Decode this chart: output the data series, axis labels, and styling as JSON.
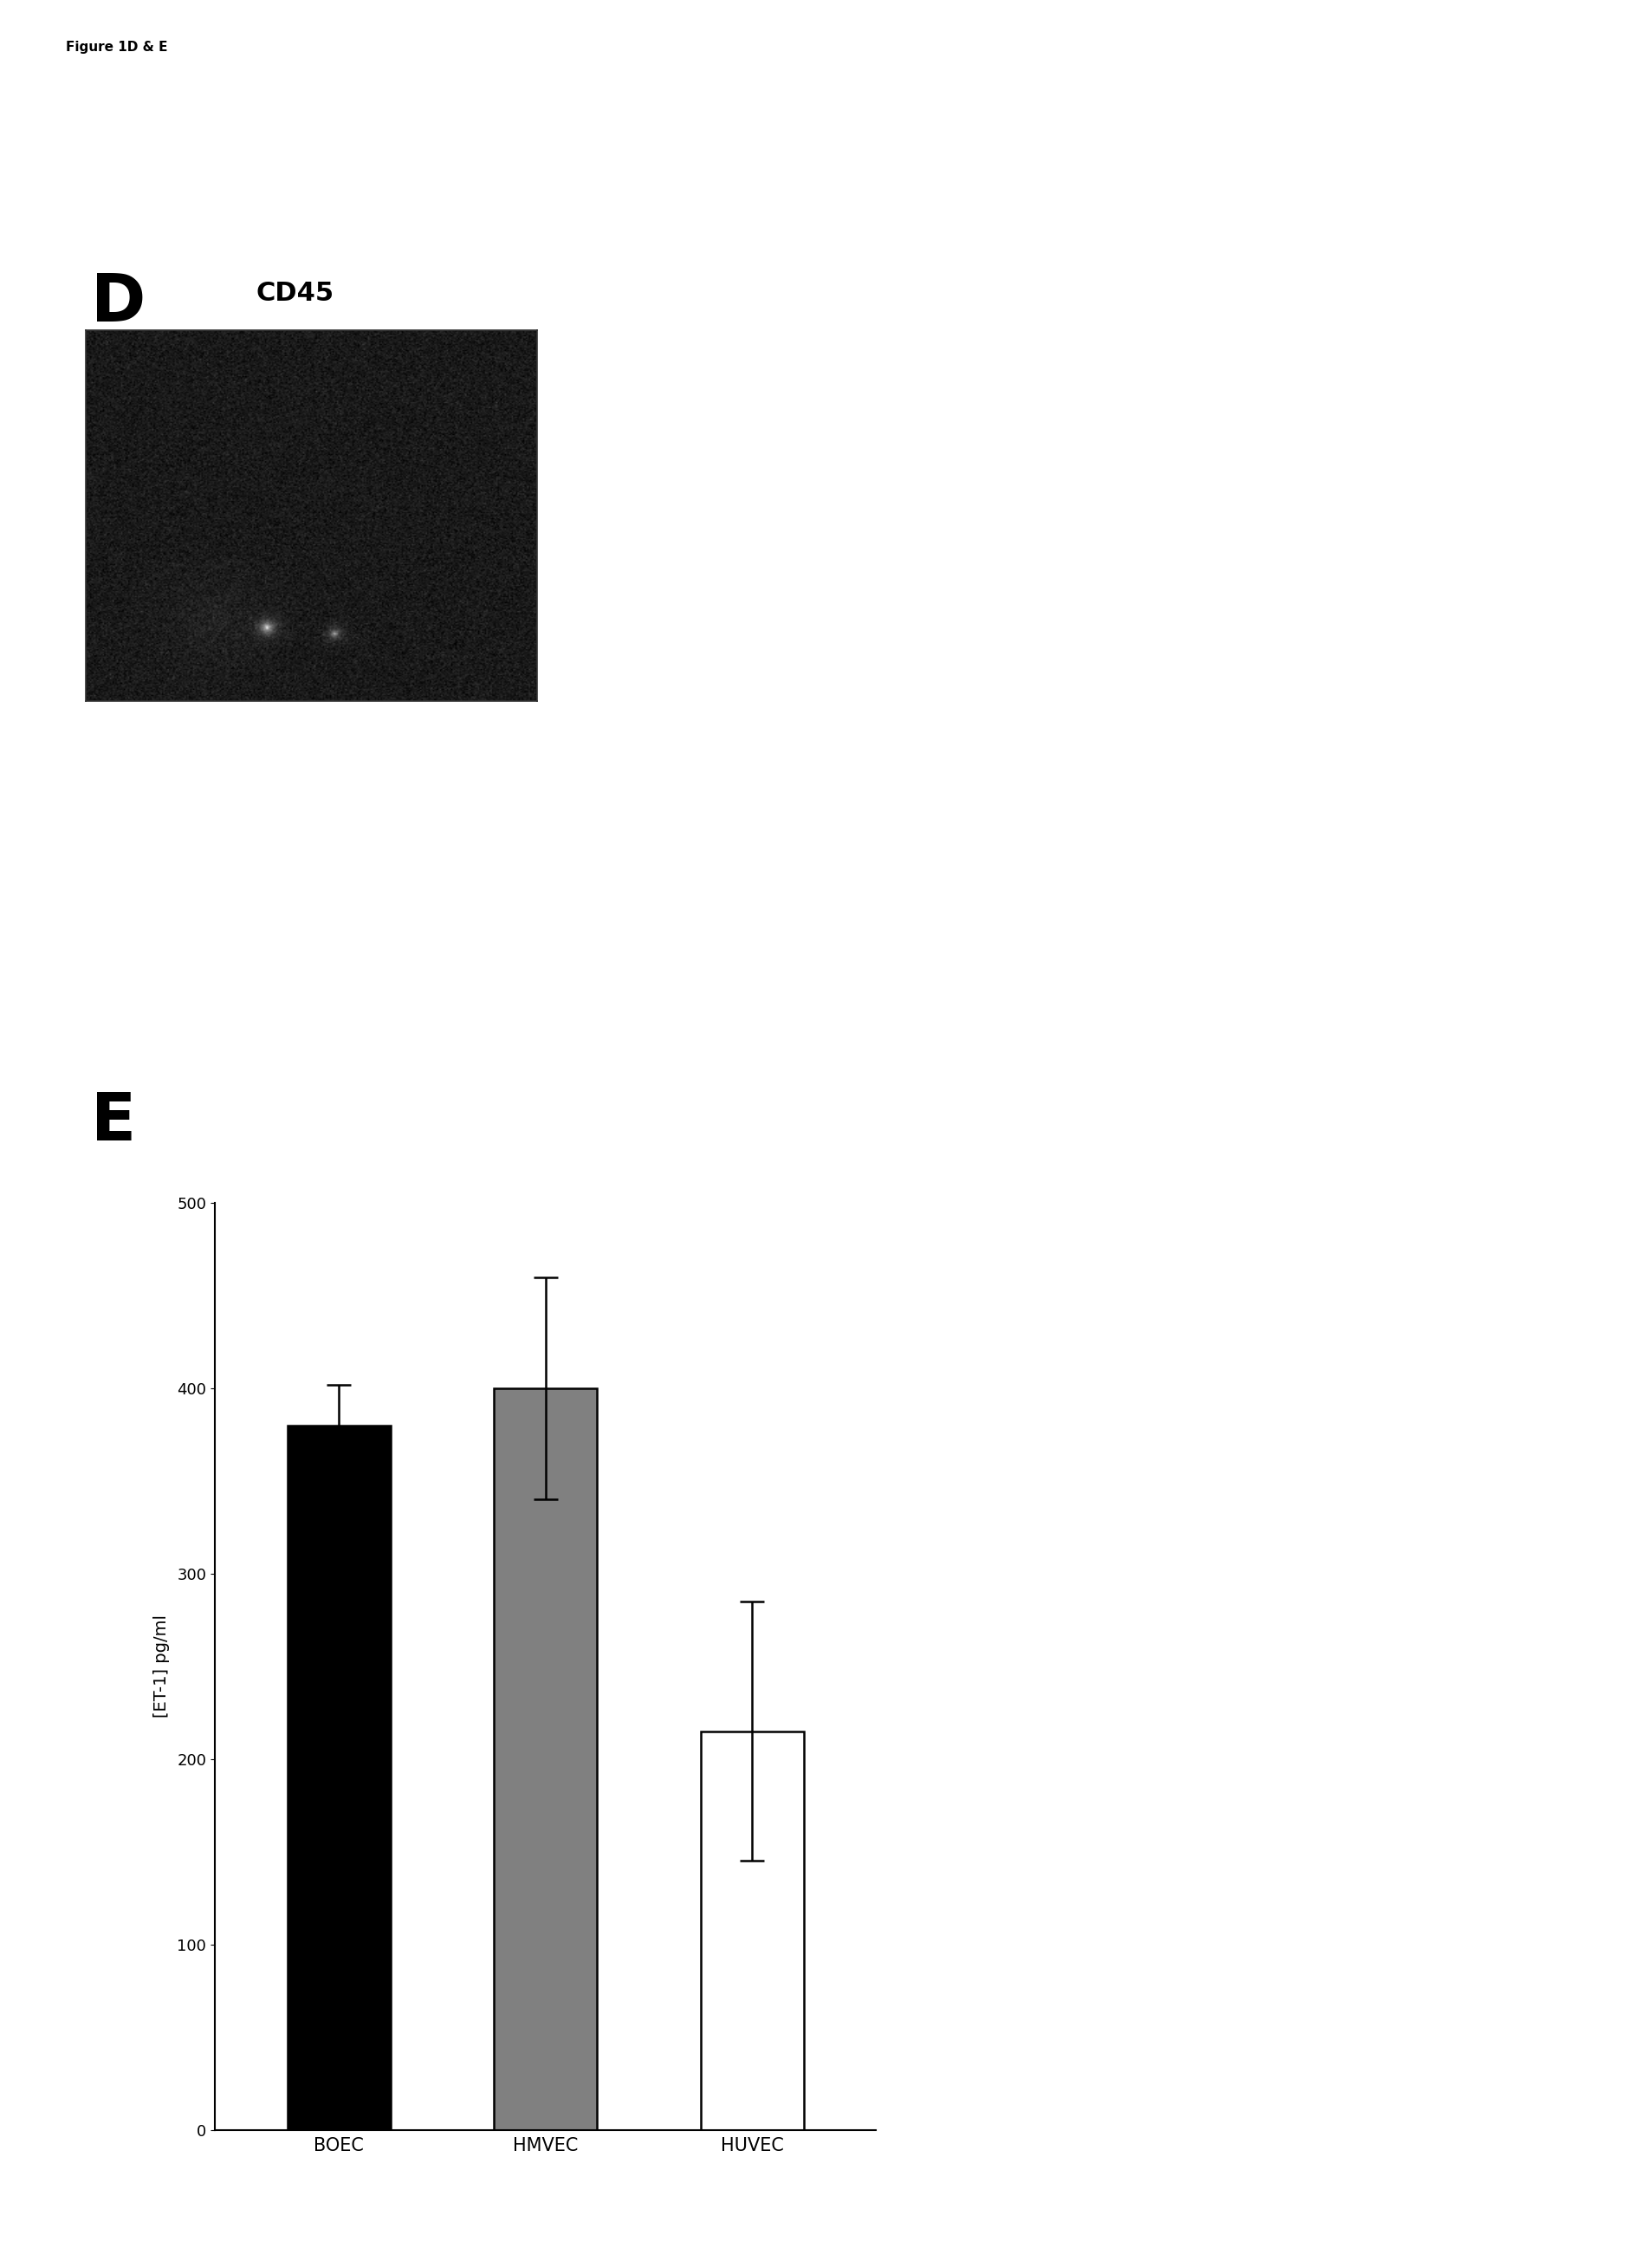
{
  "figure_label": "Figure 1D & E",
  "panel_D_label": "D",
  "panel_D_sublabel": "CD45",
  "panel_E_label": "E",
  "bar_categories": [
    "BOEC",
    "HMVEC",
    "HUVEC"
  ],
  "bar_values": [
    380,
    400,
    215
  ],
  "bar_errors": [
    22,
    60,
    70
  ],
  "bar_colors": [
    "#000000",
    "#808080",
    "#ffffff"
  ],
  "bar_edgecolors": [
    "#000000",
    "#000000",
    "#000000"
  ],
  "ylabel": "[ET-1] pg/ml",
  "ylim": [
    0,
    500
  ],
  "yticks": [
    0,
    100,
    200,
    300,
    400,
    500
  ],
  "background_color": "#ffffff",
  "figure_label_fontsize": 11,
  "panel_label_fontsize": 55,
  "panel_sublabel_fontsize": 22,
  "bar_width": 0.5,
  "image_noise_seed": 42
}
